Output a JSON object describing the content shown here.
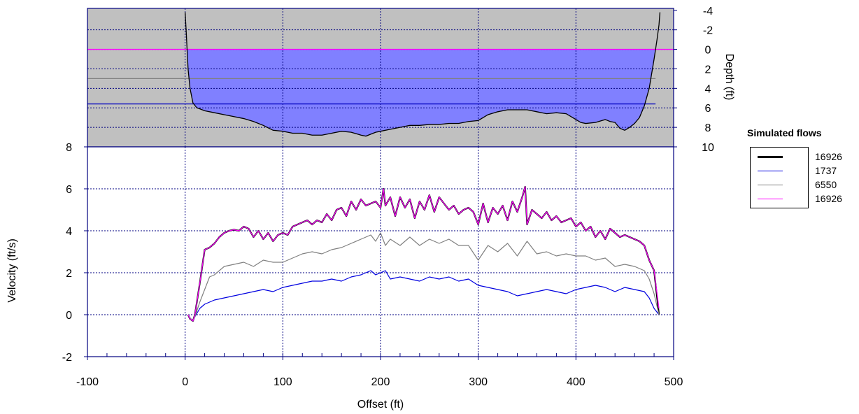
{
  "chart_data": [
    {
      "type": "area",
      "panel": "cross-section",
      "ylabel": "Depth (ft)",
      "yticks": [
        -4,
        -2,
        0,
        2,
        4,
        6,
        8,
        10
      ],
      "ylim": [
        10,
        -4.2
      ],
      "y_axis_reversed": true,
      "y_axis_side": "right",
      "water_surface_depths": [
        0,
        3,
        5.6
      ],
      "bed_profile": {
        "x": [
          0,
          1,
          2,
          3,
          5,
          8,
          12,
          15,
          20,
          30,
          40,
          50,
          60,
          70,
          80,
          90,
          100,
          110,
          120,
          130,
          140,
          150,
          160,
          170,
          180,
          185,
          190,
          195,
          200,
          210,
          220,
          230,
          240,
          250,
          260,
          270,
          280,
          290,
          300,
          310,
          320,
          330,
          340,
          350,
          360,
          370,
          380,
          390,
          400,
          405,
          410,
          420,
          430,
          435,
          440,
          445,
          450,
          455,
          460,
          465,
          470,
          475,
          480,
          483,
          485,
          486
        ],
        "depth": [
          -3.8,
          -2,
          0,
          2,
          4,
          5.5,
          6,
          6.1,
          6.3,
          6.5,
          6.7,
          6.9,
          7.1,
          7.4,
          7.8,
          8.3,
          8.4,
          8.6,
          8.6,
          8.8,
          8.8,
          8.6,
          8.4,
          8.5,
          8.8,
          8.9,
          8.7,
          8.5,
          8.4,
          8.2,
          8.0,
          7.8,
          7.8,
          7.7,
          7.7,
          7.6,
          7.6,
          7.4,
          7.3,
          6.7,
          6.4,
          6.2,
          6.2,
          6.2,
          6.4,
          6.6,
          6.5,
          6.6,
          7.2,
          7.5,
          7.6,
          7.5,
          7.2,
          7.4,
          7.5,
          8.1,
          8.3,
          8.0,
          7.6,
          7.0,
          5.8,
          4.0,
          1.0,
          -1.0,
          -2.5,
          -3.8
        ]
      },
      "xlim": [
        -100,
        500
      ],
      "grid": true
    },
    {
      "type": "line",
      "panel": "velocity",
      "xlabel": "Offset (ft)",
      "ylabel": "Velocity (ft/s)",
      "xticks": [
        -100,
        0,
        100,
        200,
        300,
        400,
        500
      ],
      "yticks": [
        -2,
        0,
        2,
        4,
        6,
        8
      ],
      "xlim": [
        -100,
        500
      ],
      "ylim": [
        -2,
        8
      ],
      "grid": true,
      "legend_title": "Simulated flows",
      "legend_position": "right",
      "series": [
        {
          "name": "16926",
          "color": "#000000",
          "width": 2.2,
          "x": [
            3,
            5,
            8,
            10,
            15,
            20,
            25,
            30,
            35,
            40,
            45,
            50,
            55,
            60,
            65,
            70,
            75,
            80,
            85,
            90,
            95,
            100,
            105,
            110,
            115,
            120,
            125,
            130,
            135,
            140,
            145,
            150,
            155,
            160,
            165,
            170,
            175,
            180,
            185,
            190,
            195,
            200,
            203,
            205,
            210,
            215,
            220,
            225,
            230,
            235,
            240,
            245,
            250,
            255,
            260,
            265,
            270,
            275,
            280,
            285,
            290,
            295,
            300,
            305,
            310,
            315,
            320,
            325,
            330,
            335,
            340,
            345,
            348,
            350,
            355,
            360,
            365,
            370,
            375,
            380,
            385,
            390,
            395,
            400,
            405,
            410,
            415,
            420,
            425,
            430,
            435,
            440,
            445,
            450,
            455,
            460,
            465,
            470,
            475,
            480,
            485
          ],
          "y": [
            0,
            -0.2,
            -0.3,
            0,
            1.5,
            3.1,
            3.2,
            3.4,
            3.7,
            3.9,
            4.0,
            4.05,
            4.0,
            4.2,
            4.1,
            3.7,
            4.0,
            3.6,
            3.9,
            3.5,
            3.8,
            3.9,
            3.8,
            4.2,
            4.3,
            4.4,
            4.5,
            4.3,
            4.5,
            4.4,
            4.8,
            4.5,
            5.0,
            5.1,
            4.7,
            5.4,
            5.0,
            5.5,
            5.2,
            5.3,
            5.4,
            5.1,
            6.0,
            5.2,
            5.6,
            4.7,
            5.6,
            5.1,
            5.5,
            4.6,
            5.4,
            5.0,
            5.7,
            4.9,
            5.6,
            5.3,
            5.0,
            5.2,
            4.8,
            5.0,
            5.1,
            4.9,
            4.3,
            5.3,
            4.4,
            5.1,
            4.8,
            5.2,
            4.5,
            5.4,
            4.9,
            5.6,
            6.1,
            4.3,
            5.0,
            4.8,
            4.6,
            4.9,
            4.5,
            4.7,
            4.4,
            4.5,
            4.6,
            4.2,
            4.4,
            4.0,
            4.2,
            3.7,
            4.0,
            3.6,
            4.1,
            3.9,
            3.7,
            3.8,
            3.7,
            3.6,
            3.5,
            3.3,
            2.6,
            2.1,
            0
          ]
        },
        {
          "name": "1737",
          "color": "#0000e0",
          "width": 1.2,
          "x": [
            3,
            5,
            8,
            10,
            15,
            20,
            25,
            30,
            40,
            50,
            60,
            70,
            80,
            90,
            100,
            110,
            120,
            130,
            140,
            150,
            160,
            170,
            180,
            190,
            195,
            200,
            205,
            210,
            220,
            230,
            240,
            250,
            260,
            270,
            280,
            290,
            300,
            310,
            320,
            330,
            340,
            350,
            360,
            370,
            380,
            390,
            400,
            410,
            420,
            430,
            440,
            450,
            460,
            470,
            475,
            480,
            485
          ],
          "y": [
            0,
            -0.15,
            -0.3,
            -0.1,
            0.3,
            0.5,
            0.6,
            0.7,
            0.8,
            0.9,
            1.0,
            1.1,
            1.2,
            1.1,
            1.3,
            1.4,
            1.5,
            1.6,
            1.6,
            1.7,
            1.6,
            1.8,
            1.9,
            2.1,
            1.9,
            2.0,
            2.1,
            1.7,
            1.8,
            1.7,
            1.6,
            1.8,
            1.7,
            1.8,
            1.6,
            1.7,
            1.4,
            1.3,
            1.2,
            1.1,
            0.9,
            1.0,
            1.1,
            1.2,
            1.1,
            1.0,
            1.2,
            1.3,
            1.4,
            1.3,
            1.1,
            1.3,
            1.2,
            1.1,
            0.8,
            0.3,
            0
          ]
        },
        {
          "name": "6550",
          "color": "#808080",
          "width": 1.2,
          "x": [
            3,
            5,
            8,
            10,
            15,
            20,
            25,
            30,
            40,
            50,
            60,
            70,
            80,
            90,
            100,
            110,
            120,
            130,
            140,
            150,
            160,
            170,
            180,
            190,
            195,
            200,
            205,
            210,
            220,
            230,
            240,
            250,
            260,
            270,
            280,
            290,
            300,
            310,
            320,
            330,
            340,
            350,
            360,
            370,
            380,
            390,
            400,
            410,
            420,
            430,
            440,
            450,
            460,
            470,
            475,
            480,
            485
          ],
          "y": [
            0,
            -0.15,
            -0.3,
            -0.1,
            0.6,
            1.2,
            1.8,
            1.9,
            2.3,
            2.4,
            2.5,
            2.3,
            2.6,
            2.5,
            2.5,
            2.7,
            2.9,
            3.0,
            2.9,
            3.1,
            3.2,
            3.4,
            3.6,
            3.8,
            3.5,
            3.9,
            3.3,
            3.6,
            3.3,
            3.7,
            3.3,
            3.6,
            3.4,
            3.6,
            3.3,
            3.3,
            2.6,
            3.3,
            3.0,
            3.4,
            2.8,
            3.5,
            2.9,
            3.0,
            2.8,
            2.9,
            2.8,
            2.8,
            2.6,
            2.7,
            2.3,
            2.4,
            2.3,
            2.1,
            1.7,
            1.0,
            0
          ]
        },
        {
          "name": "16926",
          "color": "#ff00ff",
          "width": 1.2,
          "x": [
            3,
            5,
            8,
            10,
            15,
            20,
            25,
            30,
            35,
            40,
            45,
            50,
            55,
            60,
            65,
            70,
            75,
            80,
            85,
            90,
            95,
            100,
            105,
            110,
            115,
            120,
            125,
            130,
            135,
            140,
            145,
            150,
            155,
            160,
            165,
            170,
            175,
            180,
            185,
            190,
            195,
            200,
            203,
            205,
            210,
            215,
            220,
            225,
            230,
            235,
            240,
            245,
            250,
            255,
            260,
            265,
            270,
            275,
            280,
            285,
            290,
            295,
            300,
            305,
            310,
            315,
            320,
            325,
            330,
            335,
            340,
            345,
            348,
            350,
            355,
            360,
            365,
            370,
            375,
            380,
            385,
            390,
            395,
            400,
            405,
            410,
            415,
            420,
            425,
            430,
            435,
            440,
            445,
            450,
            455,
            460,
            465,
            470,
            475,
            480,
            485
          ],
          "y": [
            0,
            -0.2,
            -0.3,
            0,
            1.5,
            3.1,
            3.2,
            3.4,
            3.7,
            3.9,
            4.0,
            4.05,
            4.0,
            4.2,
            4.1,
            3.7,
            4.0,
            3.6,
            3.9,
            3.5,
            3.8,
            3.9,
            3.8,
            4.2,
            4.3,
            4.4,
            4.5,
            4.3,
            4.5,
            4.4,
            4.8,
            4.5,
            5.0,
            5.1,
            4.7,
            5.4,
            5.0,
            5.5,
            5.2,
            5.3,
            5.4,
            5.1,
            6.0,
            5.2,
            5.6,
            4.7,
            5.6,
            5.1,
            5.5,
            4.6,
            5.4,
            5.0,
            5.7,
            4.9,
            5.6,
            5.3,
            5.0,
            5.2,
            4.8,
            5.0,
            5.1,
            4.9,
            4.3,
            5.3,
            4.4,
            5.1,
            4.8,
            5.2,
            4.5,
            5.4,
            4.9,
            5.6,
            6.1,
            4.3,
            5.0,
            4.8,
            4.6,
            4.9,
            4.5,
            4.7,
            4.4,
            4.5,
            4.6,
            4.2,
            4.4,
            4.0,
            4.2,
            3.7,
            4.0,
            3.6,
            4.1,
            3.9,
            3.7,
            3.8,
            3.7,
            3.6,
            3.5,
            3.3,
            2.6,
            2.1,
            0.3
          ]
        }
      ]
    }
  ]
}
